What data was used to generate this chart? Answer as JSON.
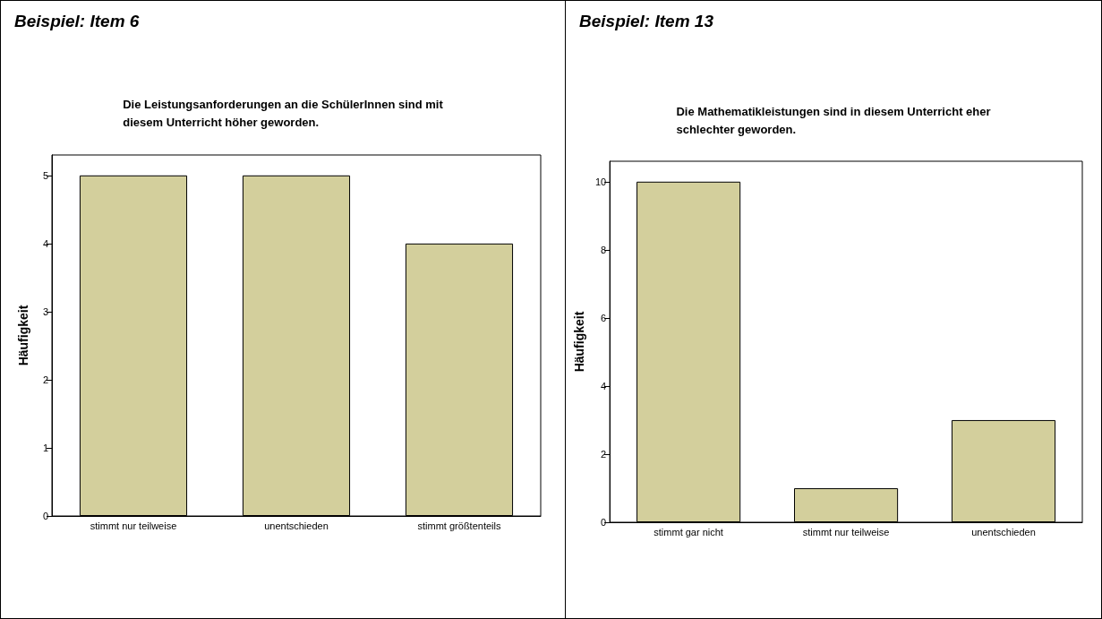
{
  "chart_data": [
    {
      "type": "bar",
      "title": "Beispiel: Item 6",
      "subtitle": "Die Leistungsanforderungen an die SchülerInnen sind mit\ndiesem Unterricht höher geworden.",
      "ylabel": "Häufigkeit",
      "categories": [
        "stimmt nur teilweise",
        "unentschieden",
        "stimmt größtenteils"
      ],
      "values": [
        5,
        5,
        4
      ],
      "color": "#d3cf9c",
      "ylim": [
        0,
        5.3
      ],
      "yticks": [
        0,
        1,
        2,
        3,
        4,
        5
      ]
    },
    {
      "type": "bar",
      "title": "Beispiel: Item 13",
      "subtitle": "Die Mathematikleistungen sind in diesem Unterricht eher\nschlechter geworden.",
      "ylabel": "Häufigkeit",
      "categories": [
        "stimmt gar nicht",
        "stimmt nur teilweise",
        "unentschieden"
      ],
      "values": [
        10,
        1,
        3
      ],
      "color": "#d3cf9c",
      "ylim": [
        0,
        10.6
      ],
      "yticks": [
        0,
        2,
        4,
        6,
        8,
        10
      ]
    }
  ]
}
